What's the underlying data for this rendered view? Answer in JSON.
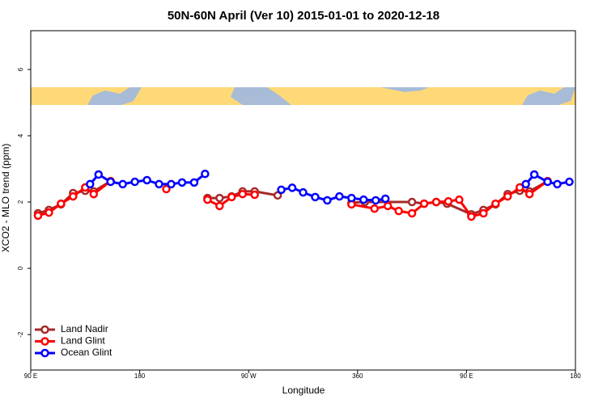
{
  "chart_data": {
    "type": "line",
    "title": "50N-60N April (Ver 10)   2015-01-01 to 2020-12-18",
    "x_label": "Longitude",
    "y_label": "XCO2 - MLO trend (ppm)",
    "xlim": [
      90,
      540
    ],
    "ylim": [
      -3.07,
      7.17
    ],
    "xticks": [
      {
        "value": 90,
        "label": "90 E"
      },
      180,
      {
        "value": 270,
        "label": "90 W"
      },
      360,
      {
        "value": 450,
        "label": "90 E"
      },
      {
        "value": 540,
        "label": "180"
      }
    ],
    "yticks": [
      -2,
      0,
      2,
      4,
      6
    ],
    "legend": "bottom-left",
    "series": [
      {
        "name": "Land Nadir",
        "color": "#a52a2a",
        "x": [
          96,
          105,
          115,
          125,
          135,
          142,
          156,
          null,
          236,
          246,
          256,
          265,
          275,
          294,
          null,
          355,
          366,
          405,
          415,
          425,
          434,
          454,
          464,
          474,
          484,
          494,
          502,
          517
        ],
        "values": [
          1.66,
          1.76,
          1.93,
          2.27,
          2.34,
          2.32,
          2.63,
          null,
          2.12,
          2.12,
          2.17,
          2.32,
          2.32,
          2.2,
          null,
          1.98,
          2.0,
          2.0,
          1.95,
          2.0,
          1.95,
          1.63,
          1.76,
          1.93,
          2.24,
          2.34,
          2.32,
          2.63
        ]
      },
      {
        "name": "Land Glint",
        "color": "#ff0000",
        "x": [
          96,
          105,
          115,
          125,
          135,
          142,
          156,
          null,
          202,
          null,
          236,
          246,
          256,
          265,
          275,
          null,
          355,
          374,
          385,
          394,
          405,
          415,
          425,
          435,
          444,
          454,
          464,
          474,
          484,
          494,
          502,
          517
        ],
        "values": [
          1.59,
          1.68,
          1.95,
          2.17,
          2.44,
          2.24,
          2.63,
          null,
          2.39,
          null,
          2.07,
          1.88,
          2.15,
          2.24,
          2.22,
          null,
          1.93,
          1.8,
          1.88,
          1.73,
          1.66,
          1.95,
          2.0,
          2.02,
          2.07,
          1.56,
          1.66,
          1.95,
          2.17,
          2.44,
          2.24,
          2.63
        ]
      },
      {
        "name": "Ocean Glint",
        "color": "#0000ff",
        "x": [
          139,
          146,
          156,
          166,
          176,
          186,
          196,
          206,
          215,
          225,
          234,
          null,
          297,
          306,
          315,
          325,
          335,
          345,
          355,
          365,
          375,
          383,
          null,
          499,
          506,
          517,
          525,
          535
        ],
        "values": [
          2.54,
          2.83,
          2.61,
          2.54,
          2.61,
          2.66,
          2.54,
          2.54,
          2.59,
          2.59,
          2.85,
          null,
          2.37,
          2.43,
          2.29,
          2.15,
          2.05,
          2.17,
          2.12,
          2.07,
          2.05,
          2.1,
          null,
          2.54,
          2.83,
          2.61,
          2.54,
          2.61
        ]
      }
    ]
  }
}
